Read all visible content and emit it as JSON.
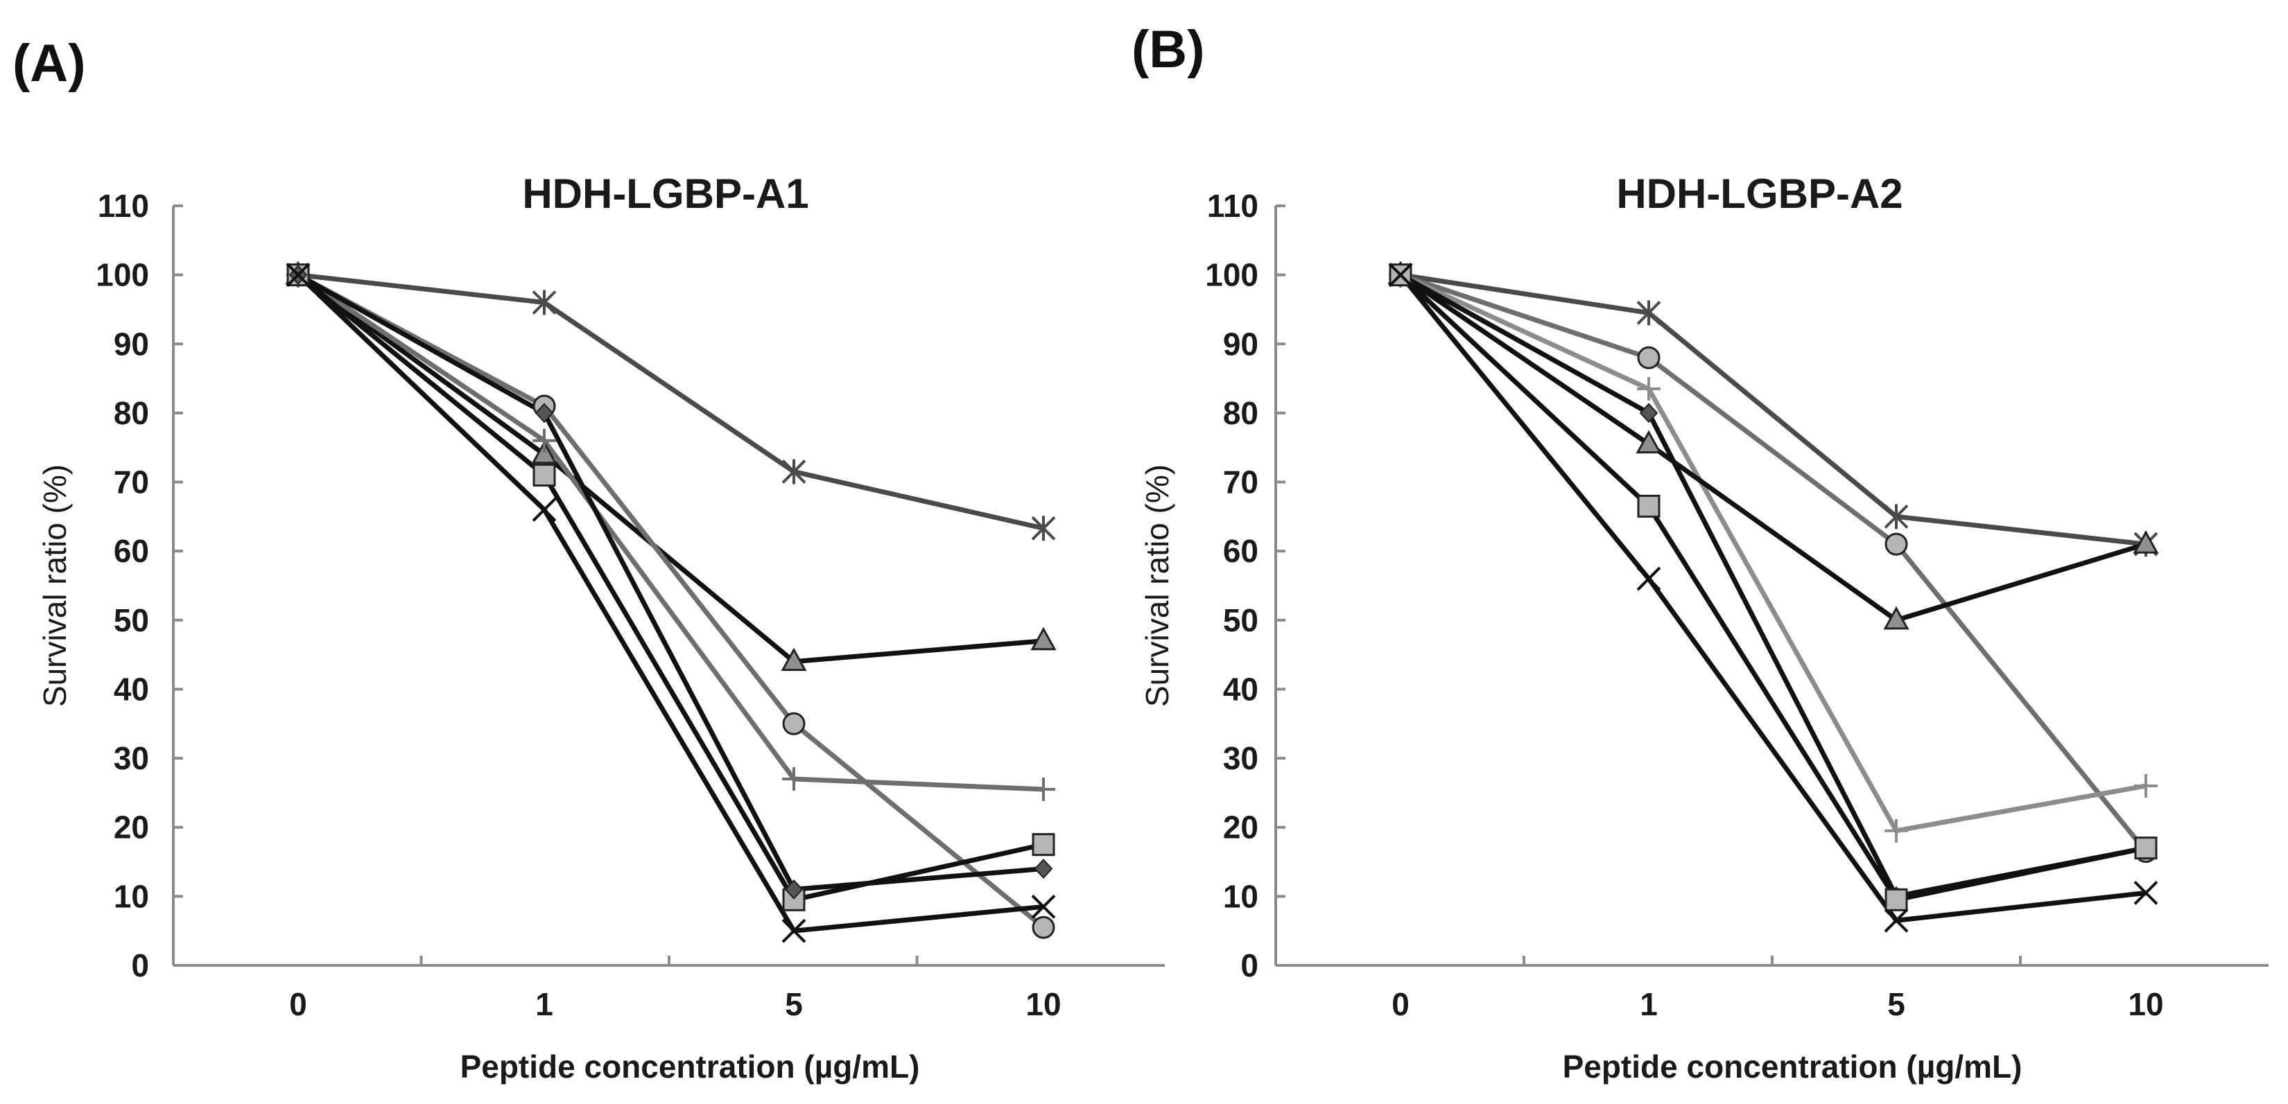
{
  "panel_labels": [
    "(A)",
    "(B)"
  ],
  "colors": {
    "black": "#111111",
    "dark_gray": "#4a4a4a",
    "mid_gray": "#6e6e6e",
    "light_gray": "#8c8c8c",
    "marker_fill_light": "#b5b5b5",
    "marker_fill_mid": "#8f8f8f",
    "marker_fill_dark": "#555555",
    "axis": "#8a8a8a"
  },
  "chart_data": [
    {
      "type": "line",
      "title": "HDH-LGBP-A1",
      "xlabel": "Peptide concentration (µg/mL)",
      "ylabel": "Survival ratio (%)",
      "categories": [
        "0",
        "1",
        "5",
        "10"
      ],
      "ylim": [
        0,
        110
      ],
      "yticks": [
        0,
        10,
        20,
        30,
        40,
        50,
        60,
        70,
        80,
        90,
        100,
        110
      ],
      "series": [
        {
          "name": "asterisk",
          "marker": "asterisk",
          "color": "dark_gray",
          "values": [
            100,
            96,
            71.5,
            63.3
          ]
        },
        {
          "name": "triangle",
          "marker": "triangle",
          "color": "black",
          "values": [
            100,
            74,
            44,
            47
          ]
        },
        {
          "name": "circle",
          "marker": "circle",
          "color": "mid_gray",
          "values": [
            100,
            81,
            35,
            5.5
          ]
        },
        {
          "name": "plus",
          "marker": "plus",
          "color": "mid_gray",
          "values": [
            100,
            76,
            27,
            25.5
          ]
        },
        {
          "name": "square",
          "marker": "square",
          "color": "black",
          "values": [
            100,
            71,
            9.5,
            17.5
          ]
        },
        {
          "name": "diamond",
          "marker": "diamond",
          "color": "black",
          "values": [
            100,
            80,
            11,
            14
          ]
        },
        {
          "name": "x",
          "marker": "x",
          "color": "black",
          "values": [
            100,
            66,
            5,
            8.5
          ]
        }
      ]
    },
    {
      "type": "line",
      "title": "HDH-LGBP-A2",
      "xlabel": "Peptide concentration (µg/mL)",
      "ylabel": "Survival ratio (%)",
      "categories": [
        "0",
        "1",
        "5",
        "10"
      ],
      "ylim": [
        0,
        110
      ],
      "yticks": [
        0,
        10,
        20,
        30,
        40,
        50,
        60,
        70,
        80,
        90,
        100,
        110
      ],
      "series": [
        {
          "name": "asterisk",
          "marker": "asterisk",
          "color": "dark_gray",
          "values": [
            100,
            94.5,
            65,
            61
          ]
        },
        {
          "name": "circle",
          "marker": "circle",
          "color": "mid_gray",
          "values": [
            100,
            88,
            61,
            16.5
          ]
        },
        {
          "name": "plus",
          "marker": "plus",
          "color": "light_gray",
          "values": [
            100,
            83.5,
            19.5,
            26
          ]
        },
        {
          "name": "diamond",
          "marker": "diamond",
          "color": "black",
          "values": [
            100,
            80,
            10,
            17
          ]
        },
        {
          "name": "triangle",
          "marker": "triangle",
          "color": "black",
          "values": [
            100,
            75.5,
            50,
            61
          ]
        },
        {
          "name": "square",
          "marker": "square",
          "color": "black",
          "values": [
            100,
            66.5,
            9.5,
            17
          ]
        },
        {
          "name": "x",
          "marker": "x",
          "color": "black",
          "values": [
            100,
            56,
            6.5,
            10.5
          ]
        }
      ]
    }
  ]
}
